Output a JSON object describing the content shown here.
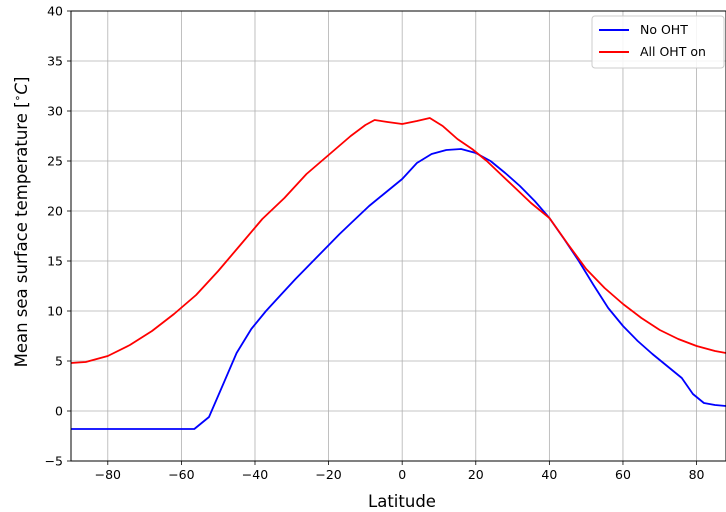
{
  "chart_data": {
    "type": "line",
    "xlabel": "Latitude",
    "ylabel": "Mean sea surface temperature [$^\\circ C$]",
    "ylabel_parts": {
      "main": "Mean sea surface temperature [",
      "deg": "∘",
      "unit": "C",
      "close": "]"
    },
    "xlim": [
      -90,
      88
    ],
    "ylim": [
      -5,
      40
    ],
    "xticks": [
      -80,
      -60,
      -40,
      -20,
      0,
      20,
      40,
      60,
      80
    ],
    "xtick_labels": [
      "−80",
      "−60",
      "−40",
      "−20",
      "0",
      "20",
      "40",
      "60",
      "80"
    ],
    "yticks": [
      -5,
      0,
      5,
      10,
      15,
      20,
      25,
      30,
      35,
      40
    ],
    "ytick_labels": [
      "−5",
      "0",
      "5",
      "10",
      "15",
      "20",
      "25",
      "30",
      "35",
      "40"
    ],
    "grid": true,
    "legend_position": "top-right",
    "series": [
      {
        "name": "No OHT",
        "color": "#0000ff",
        "x": [
          -90,
          -85,
          -80,
          -70,
          -60,
          -56.5,
          -52.5,
          -48.5,
          -45,
          -41,
          -37,
          -33,
          -29,
          -25,
          -21,
          -17,
          -13,
          -9,
          -5,
          0,
          4,
          8,
          12,
          16,
          20,
          24,
          28,
          32,
          36,
          40,
          44,
          48,
          52,
          56,
          60,
          64,
          68,
          72,
          76,
          79,
          82,
          85,
          88
        ],
        "y": [
          -1.8,
          -1.8,
          -1.8,
          -1.8,
          -1.8,
          -1.8,
          -0.6,
          2.8,
          5.8,
          8.2,
          10.0,
          11.6,
          13.2,
          14.7,
          16.2,
          17.7,
          19.1,
          20.5,
          21.7,
          23.2,
          24.8,
          25.7,
          26.1,
          26.2,
          25.8,
          25.0,
          23.8,
          22.5,
          21.0,
          19.3,
          17.2,
          15.0,
          12.6,
          10.3,
          8.5,
          7.0,
          5.7,
          4.5,
          3.3,
          1.7,
          0.8,
          0.6,
          0.5
        ]
      },
      {
        "name": "All OHT on",
        "color": "#ff0000",
        "x": [
          -90,
          -86,
          -80,
          -74,
          -68,
          -62,
          -56,
          -50,
          -44,
          -38,
          -32,
          -26,
          -20,
          -14,
          -10,
          -7.5,
          -4,
          0,
          4,
          7.5,
          11,
          15,
          19,
          23,
          27,
          31,
          35,
          40,
          45,
          50,
          55,
          60,
          65,
          70,
          75,
          80,
          85,
          88
        ],
        "y": [
          4.8,
          4.9,
          5.5,
          6.6,
          8.0,
          9.7,
          11.6,
          14.0,
          16.6,
          19.2,
          21.3,
          23.7,
          25.6,
          27.5,
          28.6,
          29.1,
          28.9,
          28.7,
          29.0,
          29.3,
          28.5,
          27.2,
          26.2,
          25.0,
          23.6,
          22.2,
          20.8,
          19.3,
          16.7,
          14.2,
          12.3,
          10.7,
          9.3,
          8.1,
          7.2,
          6.5,
          6.0,
          5.8
        ]
      }
    ]
  }
}
